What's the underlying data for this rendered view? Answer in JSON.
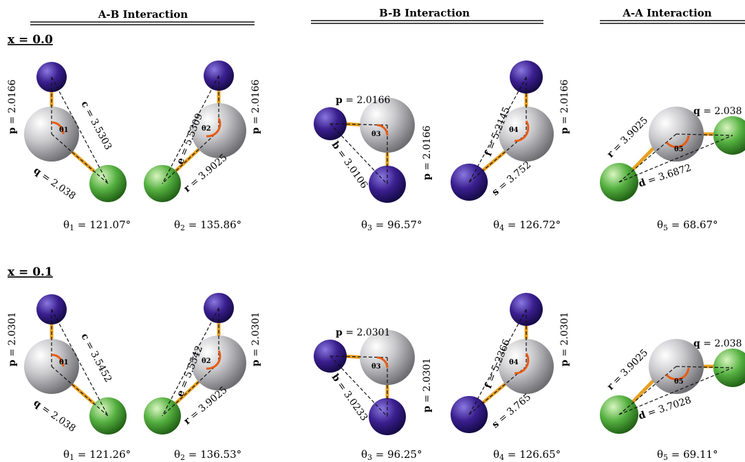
{
  "headers": {
    "ab": "A-B Interaction",
    "bb": "B-B Interaction",
    "aa": "A-A Interaction"
  },
  "rows": [
    {
      "label": "x = 0.0",
      "ab1": {
        "p": "2.0166",
        "c": "3.5303",
        "q": "2.038",
        "theta": "121.07°"
      },
      "ab2": {
        "e": "5.5309",
        "p": "2.0166",
        "r": "3.9025",
        "theta": "135.86°"
      },
      "bb1": {
        "p": "2.0166",
        "b": "3.0106",
        "p2": "2.0166",
        "theta": "96.57°"
      },
      "bb2": {
        "f": "5.2145",
        "p": "2.0166",
        "s": "3.752",
        "theta": "126.72°"
      },
      "aa": {
        "q": "2.038",
        "r": "3.9025",
        "d": "3.6872",
        "theta": "68.67°"
      }
    },
    {
      "label": "x = 0.1",
      "ab1": {
        "p": "2.0301",
        "c": "3.5452",
        "q": "2.038",
        "theta": "121.26°"
      },
      "ab2": {
        "e": "5.5542",
        "p": "2.0301",
        "r": "3.9025",
        "theta": "136.53°"
      },
      "bb1": {
        "p": "2.0301",
        "b": "3.0233",
        "p2": "2.0301",
        "theta": "96.25°"
      },
      "bb2": {
        "f": "5.2366",
        "p": "2.0301",
        "s": "3.765",
        "theta": "126.65°"
      },
      "aa": {
        "q": "2.038",
        "r": "3.9025",
        "d": "3.7028",
        "theta": "69.11°"
      }
    }
  ],
  "colors": {
    "grey": "#b9b9bd",
    "blue": "#3a1f8f",
    "green": "#55b040",
    "bond": "#e8a020",
    "arc": "#e85a10"
  }
}
